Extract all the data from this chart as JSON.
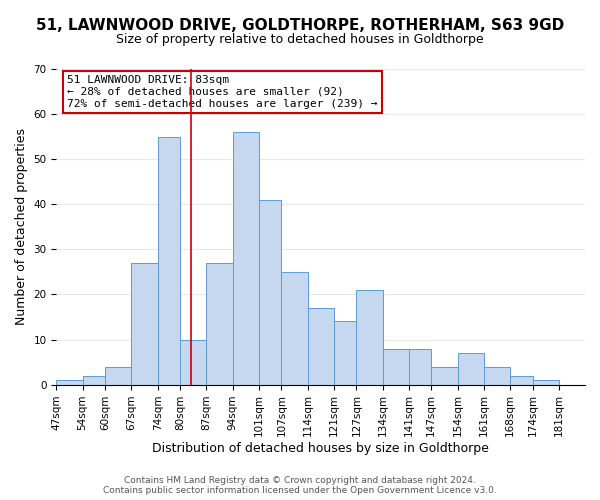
{
  "title": "51, LAWNWOOD DRIVE, GOLDTHORPE, ROTHERHAM, S63 9GD",
  "subtitle": "Size of property relative to detached houses in Goldthorpe",
  "xlabel": "Distribution of detached houses by size in Goldthorpe",
  "ylabel": "Number of detached properties",
  "bin_labels": [
    "47sqm",
    "54sqm",
    "60sqm",
    "67sqm",
    "74sqm",
    "80sqm",
    "87sqm",
    "94sqm",
    "101sqm",
    "107sqm",
    "114sqm",
    "121sqm",
    "127sqm",
    "134sqm",
    "141sqm",
    "147sqm",
    "154sqm",
    "161sqm",
    "168sqm",
    "174sqm",
    "181sqm"
  ],
  "bin_edges": [
    47,
    54,
    60,
    67,
    74,
    80,
    87,
    94,
    101,
    107,
    114,
    121,
    127,
    134,
    141,
    147,
    154,
    161,
    168,
    174,
    181,
    188
  ],
  "bar_heights": [
    1,
    2,
    4,
    27,
    55,
    10,
    27,
    56,
    41,
    25,
    17,
    14,
    21,
    8,
    8,
    4,
    7,
    4,
    2,
    1,
    0
  ],
  "bar_color": "#c5d8f0",
  "bar_edge_color": "#5b9bd5",
  "grid_color": "#e8e8e8",
  "vline_x": 83,
  "vline_color": "#cc0000",
  "annotation_box_text": "51 LAWNWOOD DRIVE: 83sqm\n← 28% of detached houses are smaller (92)\n72% of semi-detached houses are larger (239) →",
  "annotation_box_edge_color": "#cc0000",
  "ylim": [
    0,
    70
  ],
  "yticks": [
    0,
    10,
    20,
    30,
    40,
    50,
    60,
    70
  ],
  "footer_line1": "Contains HM Land Registry data © Crown copyright and database right 2024.",
  "footer_line2": "Contains public sector information licensed under the Open Government Licence v3.0.",
  "background_color": "#ffffff",
  "title_fontsize": 11,
  "subtitle_fontsize": 9,
  "xlabel_fontsize": 9,
  "ylabel_fontsize": 9,
  "tick_fontsize": 7.5,
  "annotation_fontsize": 8,
  "footer_fontsize": 6.5
}
